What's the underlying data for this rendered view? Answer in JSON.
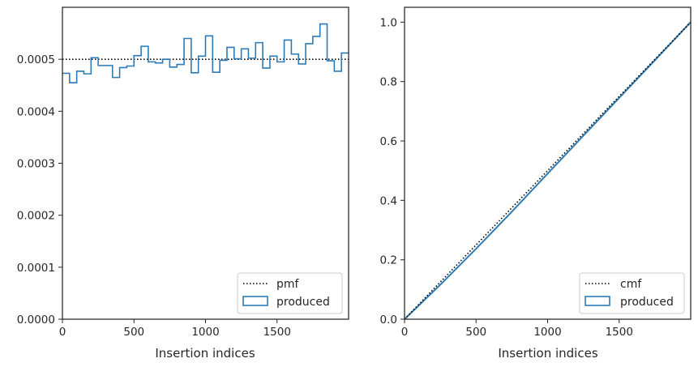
{
  "chart_data": [
    {
      "type": "histogram-step",
      "xlabel": "Insertion indices",
      "ylabel": "",
      "xlim": [
        0,
        2000
      ],
      "ylim": [
        0,
        0.0006
      ],
      "x_ticks": [
        0,
        500,
        1000,
        1500
      ],
      "y_ticks": [
        0.0,
        0.0001,
        0.0002,
        0.0003,
        0.0004,
        0.0005
      ],
      "x_tick_labels": [
        "0",
        "500",
        "1000",
        "1500"
      ],
      "y_tick_labels": [
        "0.0000",
        "0.0001",
        "0.0002",
        "0.0003",
        "0.0004",
        "0.0005"
      ],
      "bin_width": 50,
      "series": [
        {
          "name": "pmf",
          "style": "dotted",
          "color": "#000000",
          "values": [
            0.0005
          ]
        },
        {
          "name": "produced",
          "style": "step",
          "color": "#2c7bb6",
          "bin_edges_start": 0,
          "values": [
            0.000473,
            0.000455,
            0.000477,
            0.000472,
            0.000503,
            0.000488,
            0.000488,
            0.000465,
            0.000484,
            0.000487,
            0.000507,
            0.000525,
            0.000495,
            0.000493,
            0.0005,
            0.000485,
            0.00049,
            0.00054,
            0.000474,
            0.000506,
            0.000545,
            0.000475,
            0.000498,
            0.000523,
            0.000501,
            0.00052,
            0.000502,
            0.000532,
            0.000483,
            0.000506,
            0.000495,
            0.000537,
            0.00051,
            0.000491,
            0.00053,
            0.000544,
            0.000568,
            0.000497,
            0.000477,
            0.000512
          ]
        }
      ],
      "legend": {
        "position": "bottom-right",
        "entries": [
          "pmf",
          "produced"
        ]
      },
      "grid": false
    },
    {
      "type": "line",
      "xlabel": "Insertion indices",
      "ylabel": "",
      "xlim": [
        0,
        2000
      ],
      "ylim": [
        0,
        1.05
      ],
      "x_ticks": [
        0,
        500,
        1000,
        1500
      ],
      "y_ticks": [
        0.0,
        0.2,
        0.4,
        0.6,
        0.8,
        1.0
      ],
      "x_tick_labels": [
        "0",
        "500",
        "1000",
        "1500"
      ],
      "y_tick_labels": [
        "0.0",
        "0.2",
        "0.4",
        "0.6",
        "0.8",
        "1.0"
      ],
      "series": [
        {
          "name": "cmf",
          "style": "dotted",
          "color": "#000000",
          "x": [
            0,
            2000
          ],
          "values": [
            0,
            1
          ]
        },
        {
          "name": "produced",
          "style": "line",
          "color": "#2c7bb6",
          "x": [
            0,
            250,
            500,
            750,
            1000,
            1250,
            1500,
            1750,
            2000
          ],
          "values": [
            0,
            0.116,
            0.237,
            0.362,
            0.49,
            0.618,
            0.745,
            0.872,
            1.0
          ]
        }
      ],
      "legend": {
        "position": "bottom-right",
        "entries": [
          "cmf",
          "produced"
        ]
      },
      "grid": false
    }
  ]
}
